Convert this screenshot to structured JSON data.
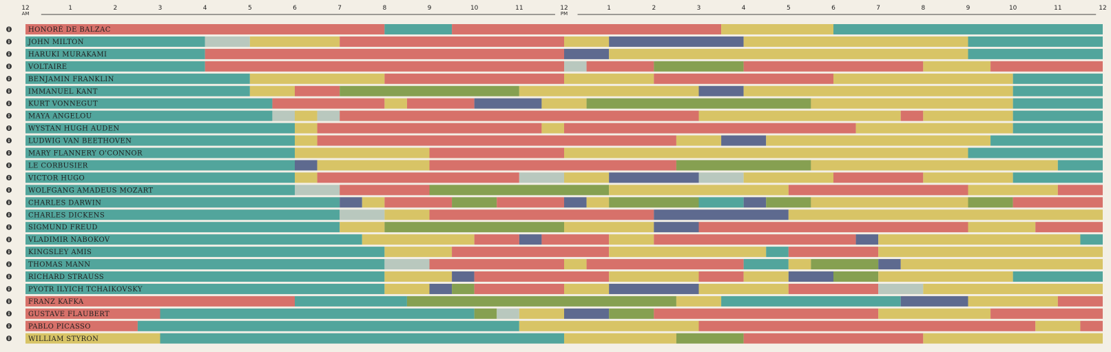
{
  "chart_data": {
    "type": "timeline",
    "title": "",
    "x_unit": "hours since midnight",
    "xlim": [
      0,
      24
    ],
    "tick_labels": [
      "12",
      "1",
      "2",
      "3",
      "4",
      "5",
      "6",
      "7",
      "8",
      "9",
      "10",
      "11",
      "12",
      "1",
      "2",
      "3",
      "4",
      "5",
      "6",
      "7",
      "8",
      "9",
      "10",
      "11",
      "12"
    ],
    "tick_sublabels": {
      "0": "AM",
      "12": "PM"
    },
    "categories": {
      "sleep": "#52a59c",
      "work": "#d7716a",
      "leisure": "#d8c466",
      "exercise": "#86a051",
      "food": "#5e6a8f",
      "other": "#b9c8be"
    },
    "rows": [
      {
        "name": "HONORÉ DE BALZAC",
        "segments": [
          [
            0,
            8,
            "work"
          ],
          [
            8,
            9.5,
            "sleep"
          ],
          [
            9.5,
            15.5,
            "work"
          ],
          [
            15.5,
            18,
            "leisure"
          ],
          [
            18,
            24,
            "sleep"
          ]
        ]
      },
      {
        "name": "JOHN MILTON",
        "segments": [
          [
            0,
            4,
            "sleep"
          ],
          [
            4,
            5,
            "other"
          ],
          [
            5,
            7,
            "leisure"
          ],
          [
            7,
            12,
            "work"
          ],
          [
            12,
            13,
            "leisure"
          ],
          [
            13,
            16,
            "food"
          ],
          [
            16,
            21,
            "leisure"
          ],
          [
            21,
            24,
            "sleep"
          ]
        ]
      },
      {
        "name": "HARUKI MURAKAMI",
        "segments": [
          [
            0,
            4,
            "sleep"
          ],
          [
            4,
            12,
            "work"
          ],
          [
            12,
            13,
            "food"
          ],
          [
            13,
            21,
            "leisure"
          ],
          [
            21,
            24,
            "sleep"
          ]
        ]
      },
      {
        "name": "VOLTAIRE",
        "segments": [
          [
            0,
            4,
            "sleep"
          ],
          [
            4,
            12,
            "work"
          ],
          [
            12,
            12.5,
            "other"
          ],
          [
            12.5,
            14,
            "work"
          ],
          [
            14,
            16,
            "exercise"
          ],
          [
            16,
            20,
            "work"
          ],
          [
            20,
            21.5,
            "leisure"
          ],
          [
            21.5,
            24,
            "work"
          ]
        ]
      },
      {
        "name": "BENJAMIN FRANKLIN",
        "segments": [
          [
            0,
            5,
            "sleep"
          ],
          [
            5,
            8,
            "leisure"
          ],
          [
            8,
            12,
            "work"
          ],
          [
            12,
            14,
            "leisure"
          ],
          [
            14,
            18,
            "work"
          ],
          [
            18,
            22,
            "leisure"
          ],
          [
            22,
            24,
            "sleep"
          ]
        ]
      },
      {
        "name": "IMMANUEL KANT",
        "segments": [
          [
            0,
            5,
            "sleep"
          ],
          [
            5,
            6,
            "leisure"
          ],
          [
            6,
            7,
            "work"
          ],
          [
            7,
            11,
            "exercise"
          ],
          [
            11,
            15,
            "leisure"
          ],
          [
            15,
            16,
            "food"
          ],
          [
            16,
            22,
            "leisure"
          ],
          [
            22,
            24,
            "sleep"
          ]
        ]
      },
      {
        "name": "KURT VONNEGUT",
        "segments": [
          [
            0,
            5.5,
            "sleep"
          ],
          [
            5.5,
            8,
            "work"
          ],
          [
            8,
            8.5,
            "leisure"
          ],
          [
            8.5,
            10,
            "work"
          ],
          [
            10,
            11.5,
            "food"
          ],
          [
            11.5,
            12.5,
            "leisure"
          ],
          [
            12.5,
            17.5,
            "exercise"
          ],
          [
            17.5,
            22,
            "leisure"
          ],
          [
            22,
            24,
            "sleep"
          ]
        ]
      },
      {
        "name": "MAYA ANGELOU",
        "segments": [
          [
            0,
            5.5,
            "sleep"
          ],
          [
            5.5,
            6,
            "other"
          ],
          [
            6,
            6.5,
            "leisure"
          ],
          [
            6.5,
            7,
            "other"
          ],
          [
            7,
            15,
            "work"
          ],
          [
            15,
            19.5,
            "leisure"
          ],
          [
            19.5,
            20,
            "work"
          ],
          [
            20,
            22,
            "leisure"
          ],
          [
            22,
            24,
            "sleep"
          ]
        ]
      },
      {
        "name": "WYSTAN HUGH AUDEN",
        "segments": [
          [
            0,
            6,
            "sleep"
          ],
          [
            6,
            6.5,
            "leisure"
          ],
          [
            6.5,
            11.5,
            "work"
          ],
          [
            11.5,
            12,
            "leisure"
          ],
          [
            12,
            18.5,
            "work"
          ],
          [
            18.5,
            22,
            "leisure"
          ],
          [
            22,
            24,
            "sleep"
          ]
        ]
      },
      {
        "name": "LUDWIG VAN BEETHOVEN",
        "segments": [
          [
            0,
            6,
            "sleep"
          ],
          [
            6,
            6.5,
            "leisure"
          ],
          [
            6.5,
            14.5,
            "work"
          ],
          [
            14.5,
            15.5,
            "leisure"
          ],
          [
            15.5,
            16.5,
            "food"
          ],
          [
            16.5,
            21.5,
            "leisure"
          ],
          [
            21.5,
            24,
            "sleep"
          ]
        ]
      },
      {
        "name": "MARY FLANNERY O'CONNOR",
        "segments": [
          [
            0,
            6,
            "sleep"
          ],
          [
            6,
            9,
            "leisure"
          ],
          [
            9,
            12,
            "work"
          ],
          [
            12,
            21,
            "leisure"
          ],
          [
            21,
            24,
            "sleep"
          ]
        ]
      },
      {
        "name": "LE CORBUSIER",
        "segments": [
          [
            0,
            6,
            "sleep"
          ],
          [
            6,
            6.5,
            "food"
          ],
          [
            6.5,
            9,
            "leisure"
          ],
          [
            9,
            14.5,
            "work"
          ],
          [
            14.5,
            17.5,
            "exercise"
          ],
          [
            17.5,
            23,
            "leisure"
          ],
          [
            23,
            24,
            "sleep"
          ]
        ]
      },
      {
        "name": "VICTOR HUGO",
        "segments": [
          [
            0,
            6,
            "sleep"
          ],
          [
            6,
            6.5,
            "leisure"
          ],
          [
            6.5,
            11,
            "work"
          ],
          [
            11,
            12,
            "other"
          ],
          [
            12,
            13,
            "leisure"
          ],
          [
            13,
            15,
            "food"
          ],
          [
            15,
            16,
            "other"
          ],
          [
            16,
            18,
            "leisure"
          ],
          [
            18,
            20,
            "work"
          ],
          [
            20,
            22,
            "leisure"
          ],
          [
            22,
            24,
            "sleep"
          ]
        ]
      },
      {
        "name": "WOLFGANG AMADEUS MOZART",
        "segments": [
          [
            0,
            6,
            "sleep"
          ],
          [
            6,
            7,
            "other"
          ],
          [
            7,
            9,
            "work"
          ],
          [
            9,
            13,
            "exercise"
          ],
          [
            13,
            17,
            "leisure"
          ],
          [
            17,
            21,
            "work"
          ],
          [
            21,
            23,
            "leisure"
          ],
          [
            23,
            24,
            "work"
          ]
        ]
      },
      {
        "name": "CHARLES DARWIN",
        "segments": [
          [
            0,
            7,
            "sleep"
          ],
          [
            7,
            7.5,
            "food"
          ],
          [
            7.5,
            8,
            "leisure"
          ],
          [
            8,
            9.5,
            "work"
          ],
          [
            9.5,
            10.5,
            "exercise"
          ],
          [
            10.5,
            12,
            "work"
          ],
          [
            12,
            12.5,
            "food"
          ],
          [
            12.5,
            13,
            "leisure"
          ],
          [
            13,
            15,
            "exercise"
          ],
          [
            15,
            16,
            "sleep"
          ],
          [
            16,
            16.5,
            "food"
          ],
          [
            16.5,
            17.5,
            "exercise"
          ],
          [
            17.5,
            21,
            "leisure"
          ],
          [
            21,
            22,
            "exercise"
          ],
          [
            22,
            24,
            "work"
          ]
        ]
      },
      {
        "name": "CHARLES DICKENS",
        "segments": [
          [
            0,
            7,
            "sleep"
          ],
          [
            7,
            8,
            "other"
          ],
          [
            8,
            9,
            "leisure"
          ],
          [
            9,
            14,
            "work"
          ],
          [
            14,
            17,
            "food"
          ],
          [
            17,
            24,
            "leisure"
          ]
        ]
      },
      {
        "name": "SIGMUND FREUD",
        "segments": [
          [
            0,
            7,
            "sleep"
          ],
          [
            7,
            8,
            "leisure"
          ],
          [
            8,
            12,
            "exercise"
          ],
          [
            12,
            14,
            "leisure"
          ],
          [
            14,
            15,
            "food"
          ],
          [
            15,
            21,
            "work"
          ],
          [
            21,
            22.5,
            "leisure"
          ],
          [
            22.5,
            24,
            "work"
          ]
        ]
      },
      {
        "name": "VLADIMIR NABOKOV",
        "segments": [
          [
            0,
            7.5,
            "sleep"
          ],
          [
            7.5,
            10,
            "leisure"
          ],
          [
            10,
            11,
            "work"
          ],
          [
            11,
            11.5,
            "food"
          ],
          [
            11.5,
            13,
            "work"
          ],
          [
            13,
            14,
            "leisure"
          ],
          [
            14,
            18.5,
            "work"
          ],
          [
            18.5,
            19,
            "food"
          ],
          [
            19,
            23.5,
            "leisure"
          ],
          [
            23.5,
            24,
            "sleep"
          ]
        ]
      },
      {
        "name": "KINGSLEY AMIS",
        "segments": [
          [
            0,
            8,
            "sleep"
          ],
          [
            8,
            9.5,
            "leisure"
          ],
          [
            9.5,
            13,
            "work"
          ],
          [
            13,
            16.5,
            "leisure"
          ],
          [
            16.5,
            17,
            "sleep"
          ],
          [
            17,
            19,
            "work"
          ],
          [
            19,
            24,
            "leisure"
          ]
        ]
      },
      {
        "name": "THOMAS MANN",
        "segments": [
          [
            0,
            8,
            "sleep"
          ],
          [
            8,
            9,
            "other"
          ],
          [
            9,
            12,
            "work"
          ],
          [
            12,
            12.5,
            "leisure"
          ],
          [
            12.5,
            16,
            "work"
          ],
          [
            16,
            17,
            "sleep"
          ],
          [
            17,
            17.5,
            "leisure"
          ],
          [
            17.5,
            19,
            "exercise"
          ],
          [
            19,
            19.5,
            "food"
          ],
          [
            19.5,
            24,
            "leisure"
          ]
        ]
      },
      {
        "name": "RICHARD STRAUSS",
        "segments": [
          [
            0,
            8,
            "sleep"
          ],
          [
            8,
            9.5,
            "leisure"
          ],
          [
            9.5,
            10,
            "food"
          ],
          [
            10,
            13,
            "work"
          ],
          [
            13,
            15,
            "leisure"
          ],
          [
            15,
            16,
            "work"
          ],
          [
            16,
            17,
            "leisure"
          ],
          [
            17,
            18,
            "food"
          ],
          [
            18,
            19,
            "exercise"
          ],
          [
            19,
            22,
            "leisure"
          ],
          [
            22,
            24,
            "sleep"
          ]
        ]
      },
      {
        "name": "PYOTR ILYICH TCHAIKOVSKY",
        "segments": [
          [
            0,
            8,
            "sleep"
          ],
          [
            8,
            9,
            "leisure"
          ],
          [
            9,
            9.5,
            "food"
          ],
          [
            9.5,
            10,
            "exercise"
          ],
          [
            10,
            12,
            "work"
          ],
          [
            12,
            13,
            "leisure"
          ],
          [
            13,
            15,
            "food"
          ],
          [
            15,
            17,
            "leisure"
          ],
          [
            17,
            19,
            "work"
          ],
          [
            19,
            20,
            "other"
          ],
          [
            20,
            24,
            "leisure"
          ]
        ]
      },
      {
        "name": "FRANZ KAFKA",
        "segments": [
          [
            0,
            6,
            "work"
          ],
          [
            6,
            8.5,
            "sleep"
          ],
          [
            8.5,
            14.5,
            "exercise"
          ],
          [
            14.5,
            15.5,
            "leisure"
          ],
          [
            15.5,
            19.5,
            "sleep"
          ],
          [
            19.5,
            21,
            "food"
          ],
          [
            21,
            23,
            "leisure"
          ],
          [
            23,
            24,
            "work"
          ]
        ]
      },
      {
        "name": "GUSTAVE FLAUBERT",
        "segments": [
          [
            0,
            3,
            "work"
          ],
          [
            3,
            10,
            "sleep"
          ],
          [
            10,
            10.5,
            "exercise"
          ],
          [
            10.5,
            11,
            "other"
          ],
          [
            11,
            12,
            "leisure"
          ],
          [
            12,
            13,
            "food"
          ],
          [
            13,
            14,
            "exercise"
          ],
          [
            14,
            19,
            "work"
          ],
          [
            19,
            21.5,
            "leisure"
          ],
          [
            21.5,
            24,
            "work"
          ]
        ]
      },
      {
        "name": "PABLO PICASSO",
        "segments": [
          [
            0,
            2.5,
            "work"
          ],
          [
            2.5,
            11,
            "sleep"
          ],
          [
            11,
            15,
            "leisure"
          ],
          [
            15,
            22.5,
            "work"
          ],
          [
            22.5,
            23.5,
            "leisure"
          ],
          [
            23.5,
            24,
            "work"
          ]
        ]
      },
      {
        "name": "WILLIAM STYRON",
        "segments": [
          [
            0,
            3,
            "leisure"
          ],
          [
            3,
            12,
            "sleep"
          ],
          [
            12,
            14.5,
            "leisure"
          ],
          [
            14.5,
            16,
            "exercise"
          ],
          [
            16,
            20,
            "work"
          ],
          [
            20,
            24,
            "leisure"
          ]
        ]
      }
    ]
  }
}
